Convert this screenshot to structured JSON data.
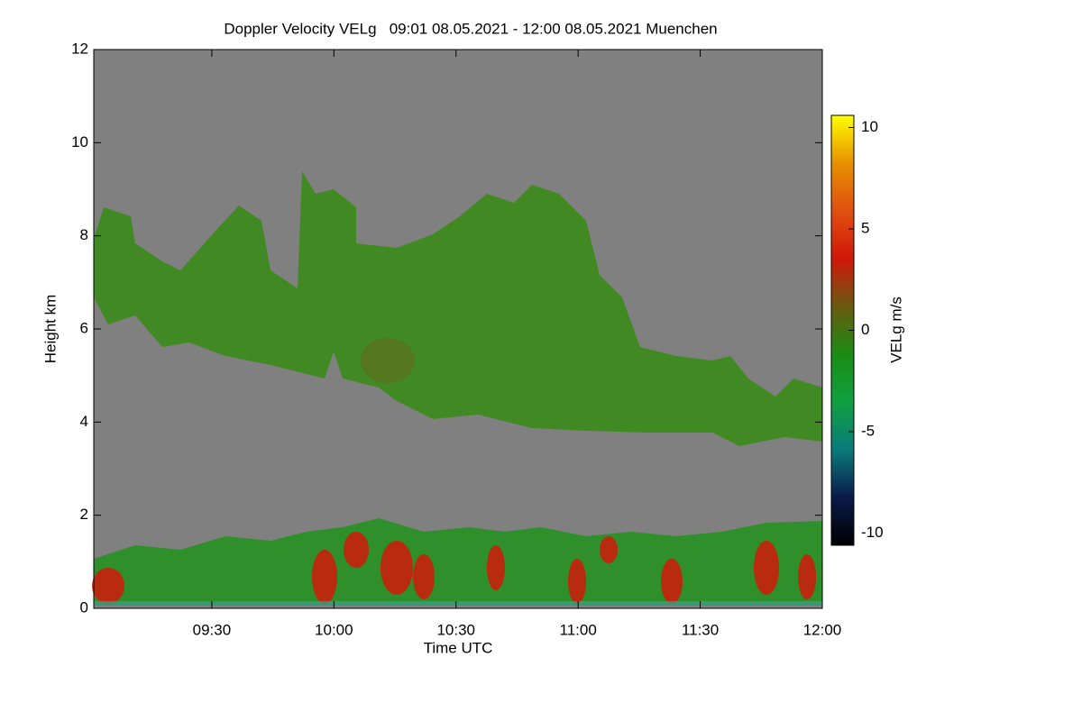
{
  "chart_data": {
    "type": "heatmap",
    "title": "Doppler Velocity VELg   09:01 08.05.2021 - 12:00 08.05.2021 Muenchen",
    "x_label": "Time UTC",
    "y_label": "Height km",
    "xlim": [
      "09:01",
      "12:00"
    ],
    "xticks": [
      "09:30",
      "10:00",
      "10:30",
      "11:00",
      "11:30",
      "12:00"
    ],
    "ylim": [
      0,
      12
    ],
    "yticks": [
      0,
      2,
      4,
      6,
      8,
      10,
      12
    ],
    "colorbar": {
      "label": "VELg m/s",
      "clim": [
        -10.6,
        10.6
      ],
      "ticks": [
        -10,
        -5,
        0,
        5,
        10
      ],
      "colormap": [
        "#000000",
        "#0a1a4a",
        "#0a7a7a",
        "#10a040",
        "#1a8c14",
        "#6a5a10",
        "#d01808",
        "#e05010",
        "#e89000",
        "#ffff00"
      ]
    },
    "background_color": "#808080"
  }
}
